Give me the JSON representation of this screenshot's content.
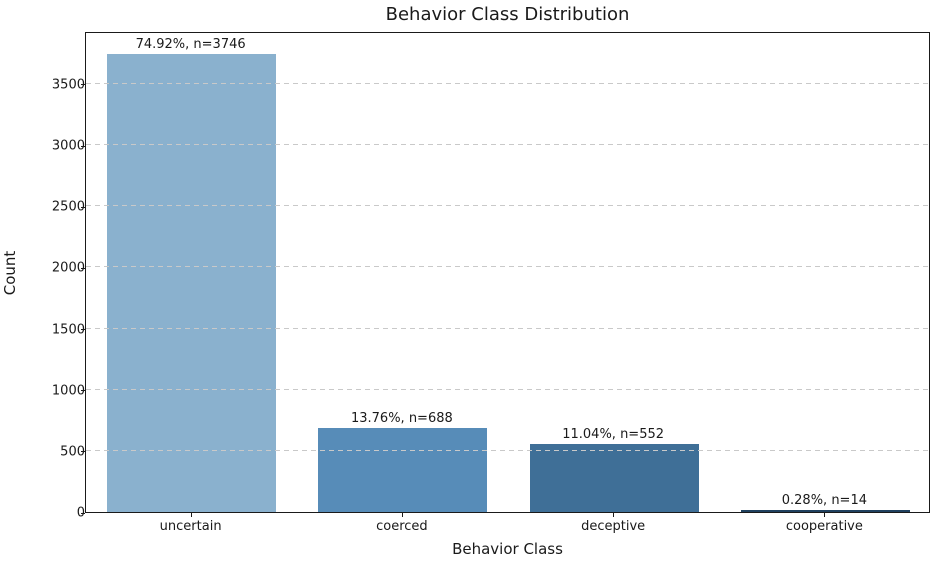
{
  "chart_data": {
    "type": "bar",
    "title": "Behavior Class Distribution",
    "xlabel": "Behavior Class",
    "ylabel": "Count",
    "categories": [
      "uncertain",
      "coerced",
      "deceptive",
      "cooperative"
    ],
    "values": [
      3746,
      688,
      552,
      14
    ],
    "annotations": [
      "74.92%, n=3746",
      "13.76%, n=688",
      "11.04%, n=552",
      "0.28%, n=14"
    ],
    "bar_colors": [
      "#8ab1ce",
      "#578cb8",
      "#3f6f97",
      "#20415f"
    ],
    "yticks": [
      0,
      500,
      1000,
      1500,
      2000,
      2500,
      3000,
      3500
    ],
    "ylim": [
      0,
      3933
    ],
    "grid": "horizontal-dashed",
    "gridline_color": "#c9c9c9",
    "legend": "none",
    "text_color": "#1a1a1a"
  }
}
